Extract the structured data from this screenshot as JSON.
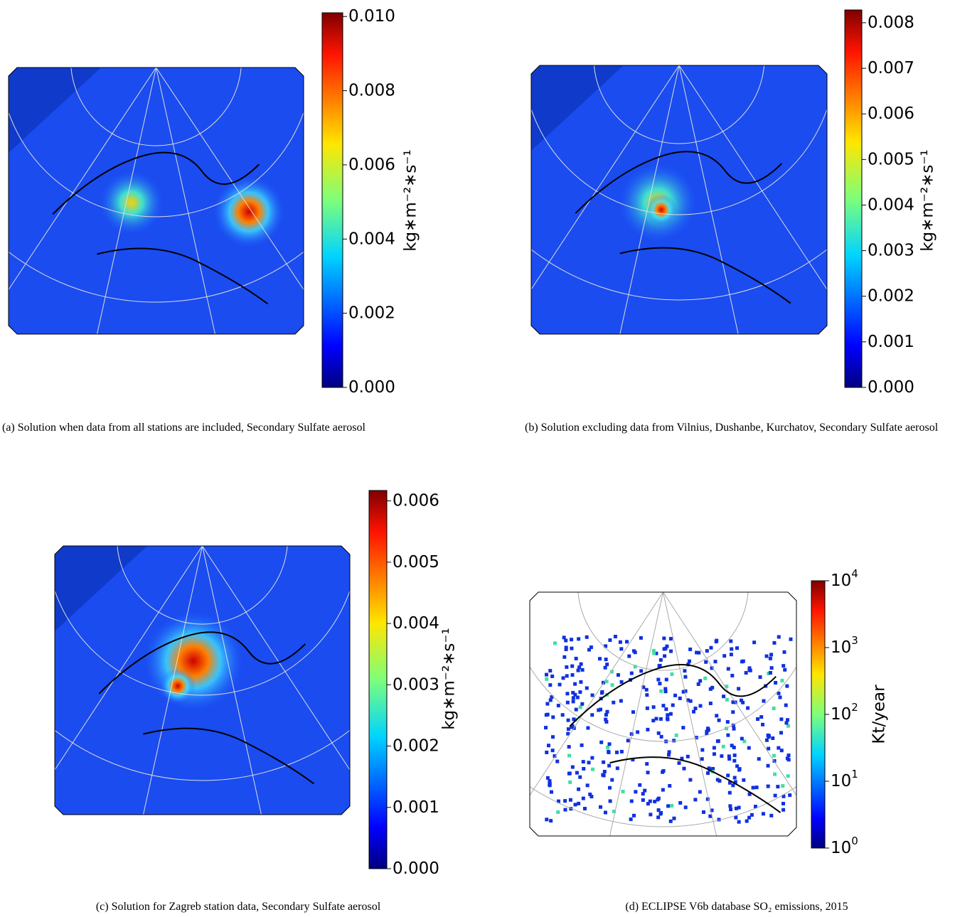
{
  "panels": [
    {
      "caption": "(a) Solution when data from all stations are included, Secondary Sulfate aerosol",
      "colorbar": {
        "label": "kg∗m⁻²∗s⁻¹",
        "lim": [
          0,
          0.0101
        ],
        "log": false,
        "ticks": [
          {
            "value": 0,
            "label": "0.000"
          },
          {
            "value": 0.002,
            "label": "0.002"
          },
          {
            "value": 0.004,
            "label": "0.004"
          },
          {
            "value": 0.006,
            "label": "0.006"
          },
          {
            "value": 0.008,
            "label": "0.008"
          },
          {
            "value": 0.01,
            "label": "0.010"
          }
        ]
      }
    },
    {
      "caption": "(b) Solution excluding data from Vilnius, Dushanbe, Kurchatov, Secondary Sulfate aerosol",
      "colorbar": {
        "label": "kg∗m⁻²∗s⁻¹",
        "lim": [
          0,
          0.00828
        ],
        "log": false,
        "ticks": [
          {
            "value": 0,
            "label": "0.000"
          },
          {
            "value": 0.001,
            "label": "0.001"
          },
          {
            "value": 0.002,
            "label": "0.002"
          },
          {
            "value": 0.003,
            "label": "0.003"
          },
          {
            "value": 0.004,
            "label": "0.004"
          },
          {
            "value": 0.005,
            "label": "0.005"
          },
          {
            "value": 0.006,
            "label": "0.006"
          },
          {
            "value": 0.007,
            "label": "0.007"
          },
          {
            "value": 0.008,
            "label": "0.008"
          }
        ]
      }
    },
    {
      "caption": "(c) Solution for Zagreb station data, Secondary Sulfate aerosol",
      "colorbar": {
        "label": "kg∗m⁻²∗s⁻¹",
        "lim": [
          0,
          0.00617
        ],
        "log": false,
        "ticks": [
          {
            "value": 0,
            "label": "0.000"
          },
          {
            "value": 0.001,
            "label": "0.001"
          },
          {
            "value": 0.002,
            "label": "0.002"
          },
          {
            "value": 0.003,
            "label": "0.003"
          },
          {
            "value": 0.004,
            "label": "0.004"
          },
          {
            "value": 0.005,
            "label": "0.005"
          },
          {
            "value": 0.006,
            "label": "0.006"
          }
        ]
      }
    },
    {
      "caption": "(d) ECLIPSE V6b database SO₂ emissions, 2015",
      "colorbar": {
        "label": "Kt/year",
        "lim": [
          1,
          10000
        ],
        "log": true,
        "ticks": [
          {
            "value": 1,
            "label": "10",
            "sup": "0"
          },
          {
            "value": 10,
            "label": "10",
            "sup": "1"
          },
          {
            "value": 100,
            "label": "10",
            "sup": "2"
          },
          {
            "value": 1000,
            "label": "10",
            "sup": "3"
          },
          {
            "value": 10000,
            "label": "10",
            "sup": "4"
          }
        ]
      }
    }
  ]
}
